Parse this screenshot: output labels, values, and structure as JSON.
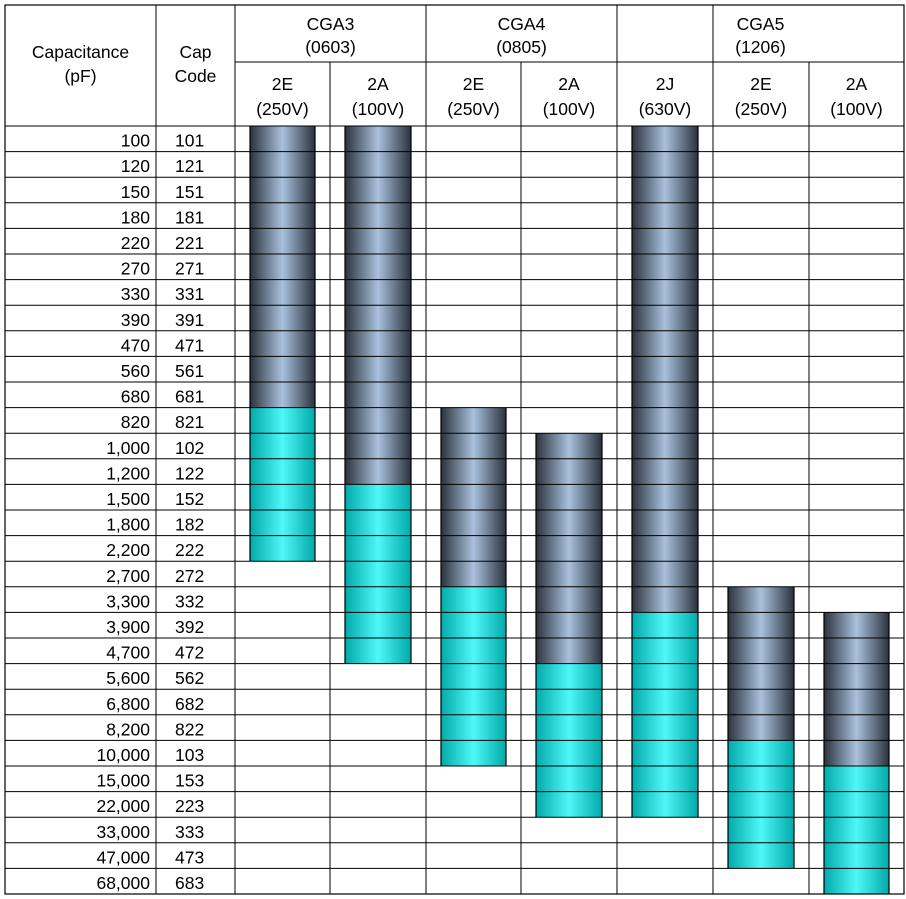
{
  "headers": {
    "capacitance": [
      "Capacitance",
      "(pF)"
    ],
    "cap_code": [
      "Cap",
      "Code"
    ]
  },
  "groups": [
    {
      "name": "CGA3",
      "size": "(0603)",
      "span": 2
    },
    {
      "name": "CGA4",
      "size": "(0805)",
      "span": 2
    },
    {
      "name": "CGA5",
      "size": "(1206)",
      "span": 3
    }
  ],
  "columns": [
    {
      "code": "2E",
      "voltage": "(250V)"
    },
    {
      "code": "2A",
      "voltage": "(100V)"
    },
    {
      "code": "2E",
      "voltage": "(250V)"
    },
    {
      "code": "2A",
      "voltage": "(100V)"
    },
    {
      "code": "2J",
      "voltage": "(630V)"
    },
    {
      "code": "2E",
      "voltage": "(250V)"
    },
    {
      "code": "2A",
      "voltage": "(100V)"
    }
  ],
  "rows": [
    {
      "cap": "100",
      "code": "101"
    },
    {
      "cap": "120",
      "code": "121"
    },
    {
      "cap": "150",
      "code": "151"
    },
    {
      "cap": "180",
      "code": "181"
    },
    {
      "cap": "220",
      "code": "221"
    },
    {
      "cap": "270",
      "code": "271"
    },
    {
      "cap": "330",
      "code": "331"
    },
    {
      "cap": "390",
      "code": "391"
    },
    {
      "cap": "470",
      "code": "471"
    },
    {
      "cap": "560",
      "code": "561"
    },
    {
      "cap": "680",
      "code": "681"
    },
    {
      "cap": "820",
      "code": "821"
    },
    {
      "cap": "1,000",
      "code": "102"
    },
    {
      "cap": "1,200",
      "code": "122"
    },
    {
      "cap": "1,500",
      "code": "152"
    },
    {
      "cap": "1,800",
      "code": "182"
    },
    {
      "cap": "2,200",
      "code": "222"
    },
    {
      "cap": "2,700",
      "code": "272"
    },
    {
      "cap": "3,300",
      "code": "332"
    },
    {
      "cap": "3,900",
      "code": "392"
    },
    {
      "cap": "4,700",
      "code": "472"
    },
    {
      "cap": "5,600",
      "code": "562"
    },
    {
      "cap": "6,800",
      "code": "682"
    },
    {
      "cap": "8,200",
      "code": "822"
    },
    {
      "cap": "10,000",
      "code": "103"
    },
    {
      "cap": "15,000",
      "code": "153"
    },
    {
      "cap": "22,000",
      "code": "223"
    },
    {
      "cap": "33,000",
      "code": "333"
    },
    {
      "cap": "47,000",
      "code": "473"
    },
    {
      "cap": "68,000",
      "code": "683"
    }
  ],
  "availability": [
    {
      "dark_from": "100",
      "cyan_from": "820",
      "to": "2,200"
    },
    {
      "dark_from": "100",
      "cyan_from": "1,500",
      "to": "4,700"
    },
    {
      "dark_from": "820",
      "cyan_from": "3,300",
      "to": "10,000"
    },
    {
      "dark_from": "1,000",
      "cyan_from": "5,600",
      "to": "22,000"
    },
    {
      "dark_from": "100",
      "cyan_from": "3,900",
      "to": "22,000"
    },
    {
      "dark_from": "3,300",
      "cyan_from": "10,000",
      "to": "47,000"
    },
    {
      "dark_from": "3,900",
      "cyan_from": "15,000",
      "to": "68,000"
    }
  ],
  "colors": {
    "dark_bar_edge": "#2b323c",
    "dark_bar_center": "#a9c1dd",
    "cyan_bar_edge": "#01a9a9",
    "cyan_bar_center": "#4ff8f8",
    "grid": "#000000"
  }
}
